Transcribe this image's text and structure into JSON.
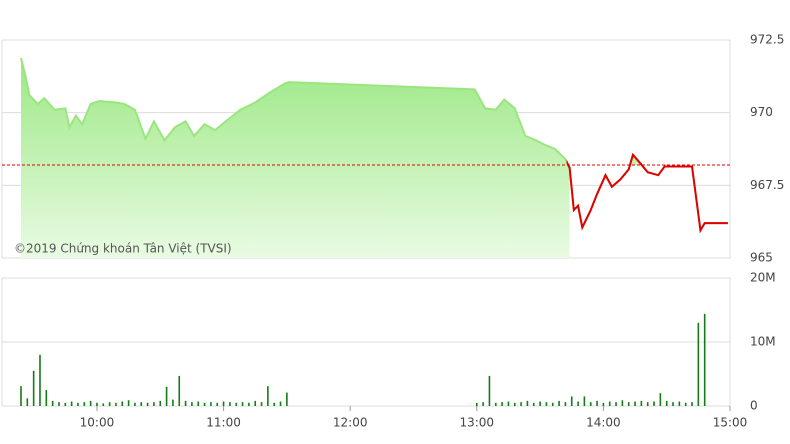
{
  "chart_data": [
    {
      "type": "line",
      "annotation": "©2019 Chứng khoán Tân Việt (TVSI)",
      "x": [
        564,
        566,
        568,
        572,
        575,
        580,
        585,
        587,
        590,
        593,
        597,
        601,
        609,
        613,
        618,
        623,
        627,
        632,
        637,
        642,
        646,
        651,
        656,
        661,
        668,
        675,
        682,
        689,
        691,
        779,
        784,
        789,
        793,
        798,
        803,
        808,
        812,
        817,
        822,
        824,
        826,
        828,
        830,
        834,
        837,
        841,
        844,
        848,
        852,
        854,
        857,
        861,
        866,
        869,
        882,
        886,
        888,
        899
      ],
      "values": [
        971.88,
        971.3,
        970.6,
        970.3,
        970.5,
        970.1,
        970.15,
        969.5,
        969.9,
        969.6,
        970.3,
        970.4,
        970.35,
        970.3,
        970.1,
        969.1,
        969.7,
        969.05,
        969.5,
        969.7,
        969.2,
        969.6,
        969.4,
        969.7,
        970.1,
        970.35,
        970.7,
        971.0,
        971.05,
        970.8,
        970.15,
        970.1,
        970.45,
        970.15,
        969.2,
        969.05,
        968.9,
        968.75,
        968.4,
        968.1,
        966.65,
        966.8,
        966.05,
        966.65,
        967.2,
        967.85,
        967.45,
        967.7,
        968.05,
        968.55,
        968.3,
        967.95,
        967.85,
        968.15,
        968.15,
        965.95,
        966.2,
        966.2
      ],
      "reference": 968.2,
      "color": "#99e67f",
      "below_color": "#e00000",
      "reference_color": "#e00000",
      "xlim": [
        555,
        900
      ],
      "ylim": [
        965,
        972.5
      ],
      "yticks": [
        965,
        967.5,
        970,
        972.5
      ],
      "grid": true
    },
    {
      "type": "bar",
      "color": "#167a16",
      "x": [
        564,
        567,
        570,
        573,
        576,
        579,
        582,
        585,
        588,
        591,
        594,
        597,
        600,
        603,
        606,
        609,
        612,
        615,
        618,
        621,
        624,
        627,
        630,
        633,
        636,
        639,
        642,
        645,
        648,
        651,
        654,
        657,
        660,
        663,
        666,
        669,
        672,
        675,
        678,
        681,
        684,
        687,
        690,
        780,
        783,
        786,
        789,
        792,
        795,
        798,
        801,
        804,
        807,
        810,
        813,
        816,
        819,
        822,
        825,
        828,
        831,
        834,
        837,
        840,
        843,
        846,
        849,
        852,
        855,
        858,
        861,
        864,
        867,
        870,
        873,
        876,
        879,
        882,
        885,
        888
      ],
      "values": [
        3.1,
        1.2,
        5.5,
        8,
        2.5,
        0.8,
        0.6,
        0.5,
        0.7,
        0.5,
        0.6,
        0.8,
        0.5,
        0.4,
        0.6,
        0.5,
        0.7,
        0.9,
        0.5,
        0.6,
        0.5,
        0.6,
        0.8,
        3,
        1,
        4.7,
        0.8,
        0.6,
        0.7,
        0.5,
        0.6,
        0.5,
        0.7,
        0.6,
        0.5,
        0.6,
        0.5,
        0.8,
        0.6,
        3.1,
        0.5,
        0.7,
        2.1,
        0.5,
        0.6,
        4.7,
        0.5,
        0.6,
        0.7,
        0.5,
        0.6,
        0.8,
        0.5,
        0.7,
        0.6,
        0.5,
        0.8,
        0.6,
        1.5,
        0.7,
        1.5,
        0.6,
        0.8,
        0.5,
        0.7,
        0.6,
        0.9,
        0.6,
        0.7,
        0.8,
        0.6,
        0.7,
        2,
        0.8,
        0.6,
        0.7,
        0.5,
        0.6,
        13,
        14.4
      ],
      "xlim": [
        555,
        900
      ],
      "ylim": [
        0,
        20
      ],
      "yticks": [
        0,
        {
          "value": 10,
          "label": "10M"
        },
        {
          "value": 20,
          "label": "20M"
        }
      ],
      "xticks": [
        {
          "value": 600,
          "label": "10:00"
        },
        {
          "value": 660,
          "label": "11:00"
        },
        {
          "value": 720,
          "label": "12:00"
        },
        {
          "value": 780,
          "label": "13:00"
        },
        {
          "value": 840,
          "label": "14:00"
        },
        {
          "value": 900,
          "label": "15:00"
        }
      ],
      "grid": true
    }
  ]
}
